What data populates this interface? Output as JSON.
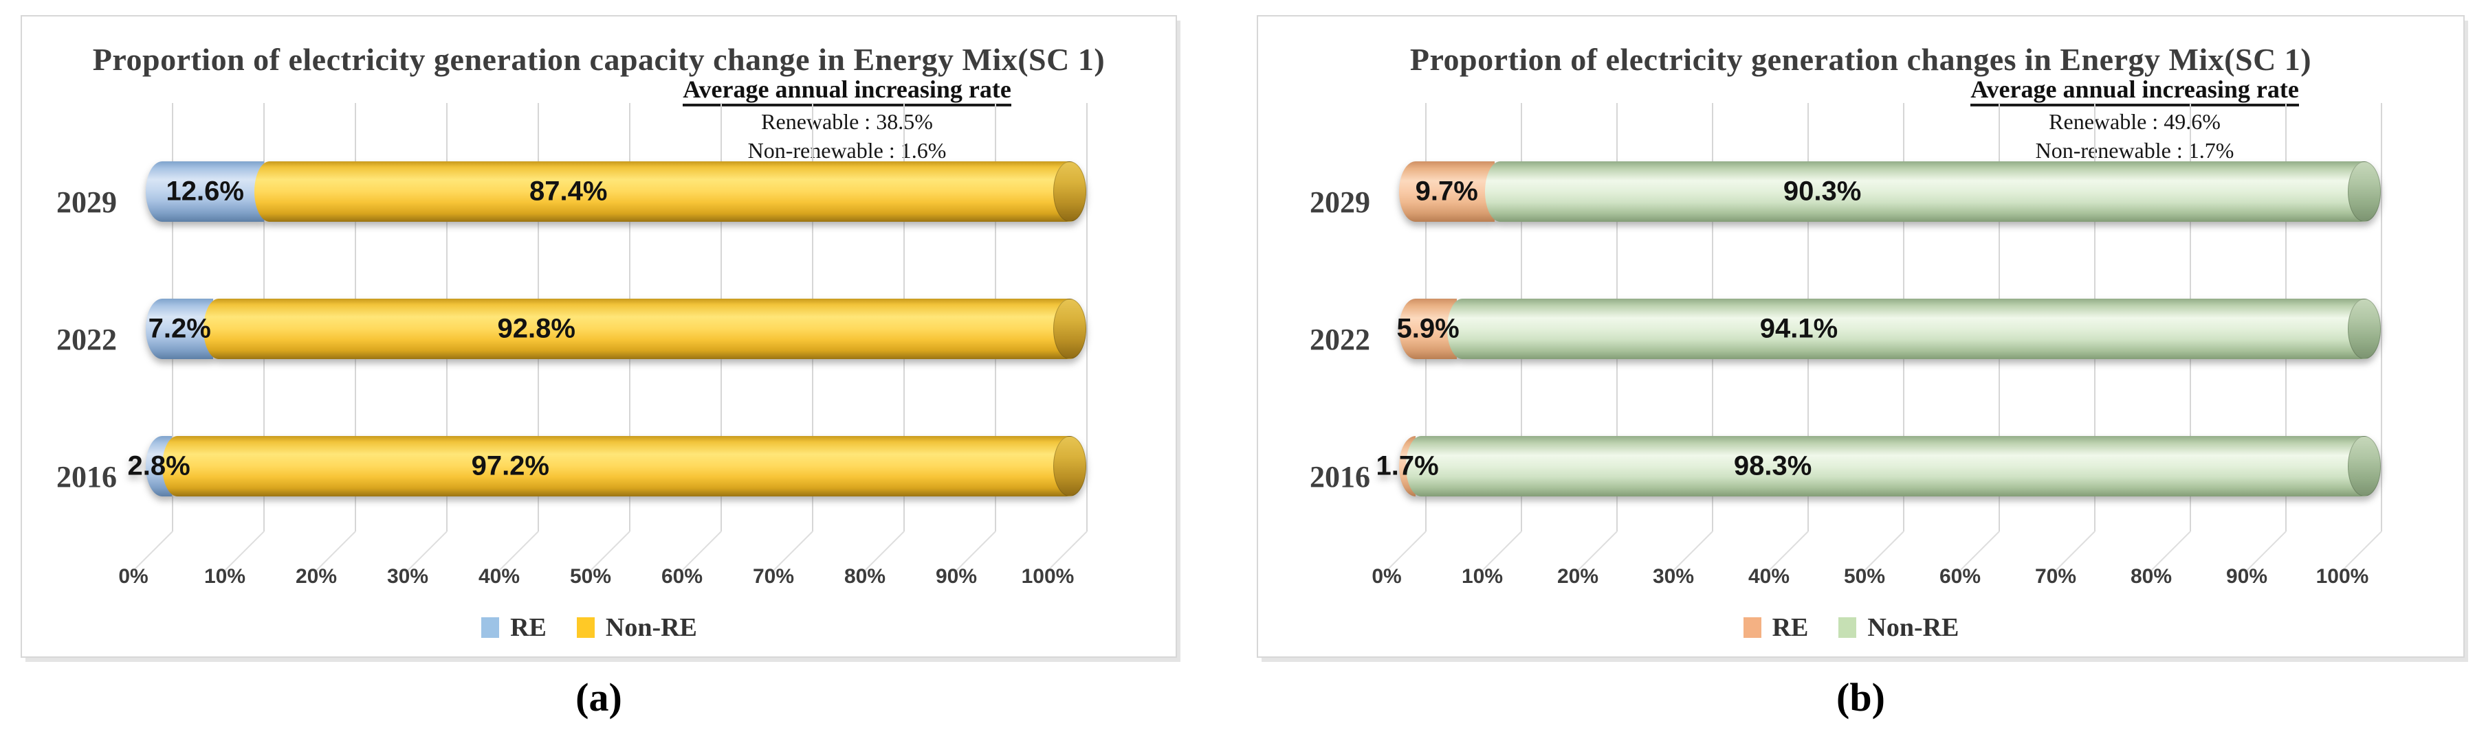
{
  "chart_data": [
    {
      "type": "bar",
      "stacked": true,
      "orientation": "horizontal",
      "bar_style": "3d-cylinder",
      "title": "Proportion of electricity generation capacity change in Energy Mix(SC 1)",
      "caption": "(a)",
      "categories": [
        "2029",
        "2022",
        "2016"
      ],
      "series": [
        {
          "name": "RE",
          "color": "#b9cfe9",
          "legend_color": "#9dc3e6",
          "values": [
            12.6,
            7.2,
            2.8
          ],
          "labels": [
            "12.6%",
            "7.2%",
            "2.8%"
          ]
        },
        {
          "name": "Non-RE",
          "color": "#ffd34d",
          "legend_color": "#ffc926",
          "values": [
            87.4,
            92.8,
            97.2
          ],
          "labels": [
            "87.4%",
            "92.8%",
            "97.2%"
          ]
        }
      ],
      "annotation": {
        "heading": "Average annual increasing rate",
        "lines": [
          "Renewable : 38.5%",
          "Non-renewable : 1.6%"
        ]
      },
      "x_ticks": [
        "0%",
        "10%",
        "20%",
        "30%",
        "40%",
        "50%",
        "60%",
        "70%",
        "80%",
        "90%",
        "100%"
      ],
      "xlim": [
        0,
        100
      ],
      "xlabel": "",
      "ylabel": "",
      "grid": true,
      "legend_position": "bottom"
    },
    {
      "type": "bar",
      "stacked": true,
      "orientation": "horizontal",
      "bar_style": "3d-cylinder",
      "title": "Proportion of electricity generation changes in Energy Mix(SC 1)",
      "caption": "(b)",
      "categories": [
        "2029",
        "2022",
        "2016"
      ],
      "series": [
        {
          "name": "RE",
          "color": "#f8c9a6",
          "legend_color": "#f4b183",
          "values": [
            9.7,
            5.9,
            1.7
          ],
          "labels": [
            "9.7%",
            "5.9%",
            "1.7%"
          ]
        },
        {
          "name": "Non-RE",
          "color": "#dfeed8",
          "legend_color": "#c6e0b4",
          "values": [
            90.3,
            94.1,
            98.3
          ],
          "labels": [
            "90.3%",
            "94.1%",
            "98.3%"
          ]
        }
      ],
      "annotation": {
        "heading": "Average annual increasing rate",
        "lines": [
          "Renewable : 49.6%",
          "Non-renewable : 1.7%"
        ]
      },
      "x_ticks": [
        "0%",
        "10%",
        "20%",
        "30%",
        "40%",
        "50%",
        "60%",
        "70%",
        "80%",
        "90%",
        "100%"
      ],
      "xlim": [
        0,
        100
      ],
      "xlabel": "",
      "ylabel": "",
      "grid": true,
      "legend_position": "bottom"
    }
  ]
}
